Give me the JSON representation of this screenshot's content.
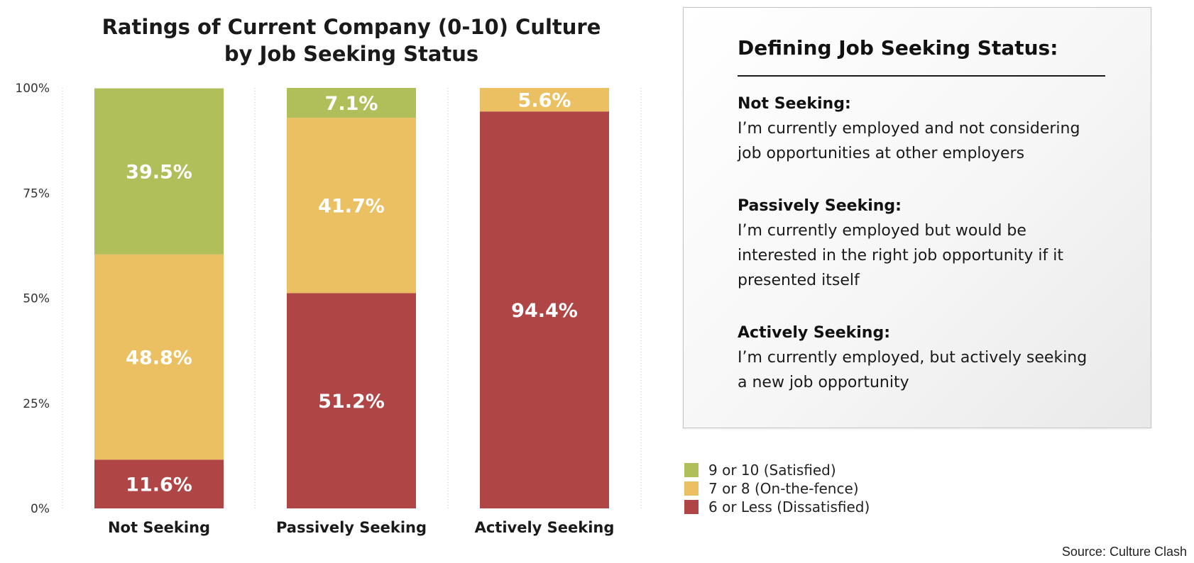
{
  "chart_data": {
    "type": "bar",
    "stacked": true,
    "title": [
      "Ratings of Current Company (0-10) Culture",
      "by Job Seeking Status"
    ],
    "categories": [
      "Not Seeking",
      "Passively Seeking",
      "Actively Seeking"
    ],
    "series": [
      {
        "name": "6 or Less (Dissatisfied)",
        "color": "#b04545",
        "values": [
          11.6,
          51.2,
          94.4
        ],
        "labels": [
          "11.6%",
          "51.2%",
          "94.4%"
        ]
      },
      {
        "name": "7 or 8 (On-the-fence)",
        "color": "#ebc062",
        "values": [
          48.8,
          41.7,
          5.6
        ],
        "labels": [
          "48.8%",
          "41.7%",
          "5.6%"
        ]
      },
      {
        "name": "9 or 10 (Satisfied)",
        "color": "#b1bf5a",
        "values": [
          39.5,
          7.1,
          0
        ],
        "labels": [
          "39.5%",
          "7.1%",
          ""
        ]
      }
    ],
    "ylim": [
      0,
      100
    ],
    "yticks": [
      "0%",
      "25%",
      "50%",
      "75%",
      "100%"
    ],
    "ytick_values": [
      0,
      25,
      50,
      75,
      100
    ],
    "legend_position": "bottom-right",
    "legend_order": [
      2,
      1,
      0
    ],
    "grid": "dotted vertical separators",
    "source": "Source: Culture Clash"
  },
  "definitions": {
    "title": "Defining Job Seeking Status:",
    "items": [
      {
        "heading": "Not Seeking:",
        "lines": [
          "I’m currently employed and not considering",
          "job opportunities at other employers"
        ]
      },
      {
        "heading": "Passively Seeking:",
        "lines": [
          "I’m currently employed but would be",
          "interested in the right job opportunity if it",
          "presented itself"
        ]
      },
      {
        "heading": "Actively Seeking:",
        "lines": [
          "I’m currently employed, but actively seeking",
          "a new job opportunity"
        ]
      }
    ]
  }
}
